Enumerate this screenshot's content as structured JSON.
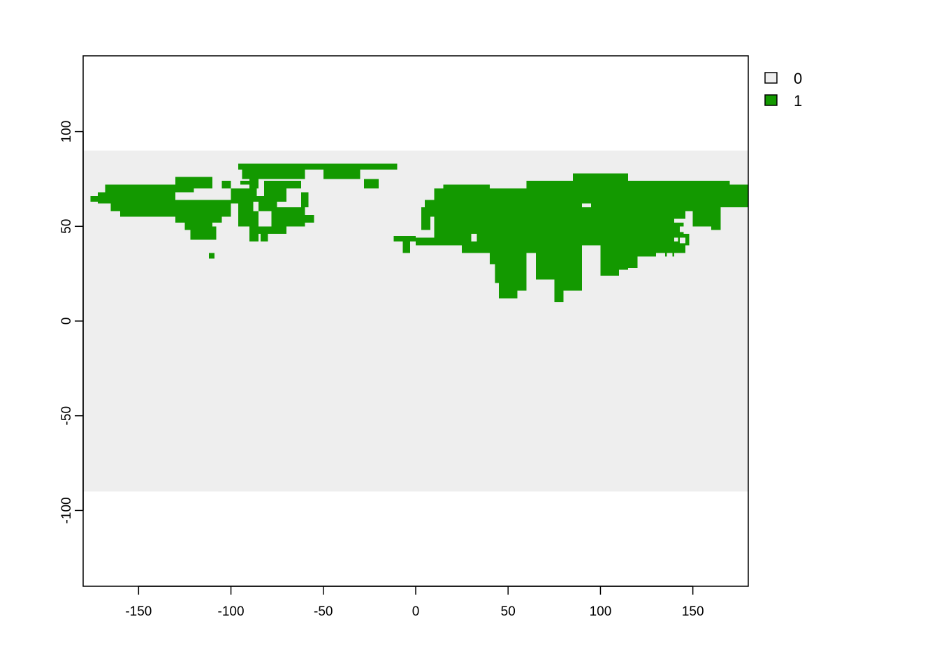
{
  "chart_data": {
    "type": "heatmap",
    "title": "",
    "xlabel": "",
    "ylabel": "",
    "xlim": [
      -180,
      180
    ],
    "ylim": [
      -140,
      140
    ],
    "raster_extent": {
      "x": [
        -180,
        180
      ],
      "y": [
        -90,
        90
      ]
    },
    "x_ticks": [
      -150,
      -100,
      -50,
      0,
      50,
      100,
      150
    ],
    "y_ticks": [
      -100,
      -50,
      0,
      50,
      100
    ],
    "x_tick_labels": [
      "-150",
      "-100",
      "-50",
      "0",
      "50",
      "100",
      "150"
    ],
    "y_tick_labels": [
      "-100",
      "-50",
      "0",
      "50",
      "100"
    ],
    "grid": false,
    "legend_position": "top-right",
    "legend": [
      {
        "label": "0",
        "color": "#eeeeee"
      },
      {
        "label": "1",
        "color": "#139900"
      }
    ],
    "cells_value_1": [
      [
        -96,
        83,
        -10,
        80
      ],
      [
        -94,
        80,
        -60,
        75
      ],
      [
        -90,
        80,
        -85,
        70
      ],
      [
        -50,
        80,
        -30,
        75
      ],
      [
        -28,
        75,
        -20,
        70
      ],
      [
        -176,
        66,
        -170,
        63
      ],
      [
        -172,
        68,
        -160,
        62
      ],
      [
        -168,
        72,
        -120,
        68
      ],
      [
        -165,
        68,
        -130,
        58
      ],
      [
        -160,
        60,
        -150,
        55
      ],
      [
        -150,
        64,
        -100,
        55
      ],
      [
        -130,
        62,
        -105,
        52
      ],
      [
        -125,
        58,
        -110,
        48
      ],
      [
        -122,
        50,
        -108,
        43
      ],
      [
        -112,
        36,
        -109,
        33
      ],
      [
        -130,
        76,
        -110,
        70
      ],
      [
        -105,
        74,
        -100,
        70
      ],
      [
        -100,
        70,
        -85,
        62
      ],
      [
        -96,
        63,
        -85,
        50
      ],
      [
        -90,
        55,
        -85,
        48
      ],
      [
        -95,
        74,
        -90,
        72
      ],
      [
        -87,
        66,
        -75,
        58
      ],
      [
        -82,
        74,
        -70,
        63
      ],
      [
        -70,
        74,
        -62,
        70
      ],
      [
        -78,
        60,
        -60,
        50
      ],
      [
        -85,
        50,
        -70,
        46
      ],
      [
        -62,
        68,
        -58,
        60
      ],
      [
        -60,
        56,
        -55,
        52
      ],
      [
        -84,
        48,
        -80,
        42
      ],
      [
        -90,
        48,
        -85,
        42
      ],
      [
        -80,
        48,
        -70,
        46
      ],
      [
        -12,
        45,
        0,
        42
      ],
      [
        -7,
        42,
        -3,
        36
      ],
      [
        0,
        44,
        15,
        40
      ],
      [
        3,
        60,
        8,
        48
      ],
      [
        5,
        64,
        15,
        55
      ],
      [
        10,
        70,
        40,
        60
      ],
      [
        15,
        72,
        40,
        68
      ],
      [
        10,
        60,
        90,
        40
      ],
      [
        25,
        40,
        35,
        36
      ],
      [
        30,
        70,
        65,
        50
      ],
      [
        35,
        44,
        65,
        36
      ],
      [
        40,
        40,
        50,
        30
      ],
      [
        43,
        36,
        60,
        20
      ],
      [
        45,
        22,
        55,
        12
      ],
      [
        55,
        30,
        60,
        16
      ],
      [
        60,
        74,
        90,
        60
      ],
      [
        65,
        60,
        100,
        40
      ],
      [
        65,
        40,
        80,
        22
      ],
      [
        75,
        40,
        90,
        16
      ],
      [
        75,
        20,
        80,
        10
      ],
      [
        70,
        30,
        75,
        24
      ],
      [
        85,
        78,
        115,
        70
      ],
      [
        90,
        74,
        140,
        62
      ],
      [
        95,
        62,
        140,
        40
      ],
      [
        100,
        40,
        110,
        24
      ],
      [
        110,
        40,
        115,
        27
      ],
      [
        115,
        40,
        120,
        28
      ],
      [
        120,
        44,
        130,
        34
      ],
      [
        130,
        46,
        138,
        36
      ],
      [
        135,
        36,
        140,
        34
      ],
      [
        140,
        74,
        170,
        64
      ],
      [
        140,
        64,
        165,
        58
      ],
      [
        150,
        58,
        160,
        50
      ],
      [
        165,
        72,
        180,
        60
      ],
      [
        170,
        70,
        180,
        60
      ],
      [
        140,
        52,
        145,
        44
      ],
      [
        142,
        46,
        148,
        40
      ],
      [
        138,
        42,
        146,
        36
      ],
      [
        140,
        58,
        146,
        54
      ],
      [
        155,
        58,
        165,
        50
      ],
      [
        160,
        56,
        165,
        48
      ],
      [
        138,
        50,
        143,
        46
      ]
    ],
    "cells_value_0": [
      [
        -88,
        63,
        -85,
        58
      ],
      [
        -86,
        70,
        -82,
        66
      ],
      [
        -66,
        68,
        -63,
        64
      ],
      [
        30,
        46,
        33,
        42
      ],
      [
        136,
        36,
        139,
        34
      ],
      [
        143,
        44,
        146,
        41
      ],
      [
        143,
        50,
        146,
        47
      ]
    ]
  }
}
